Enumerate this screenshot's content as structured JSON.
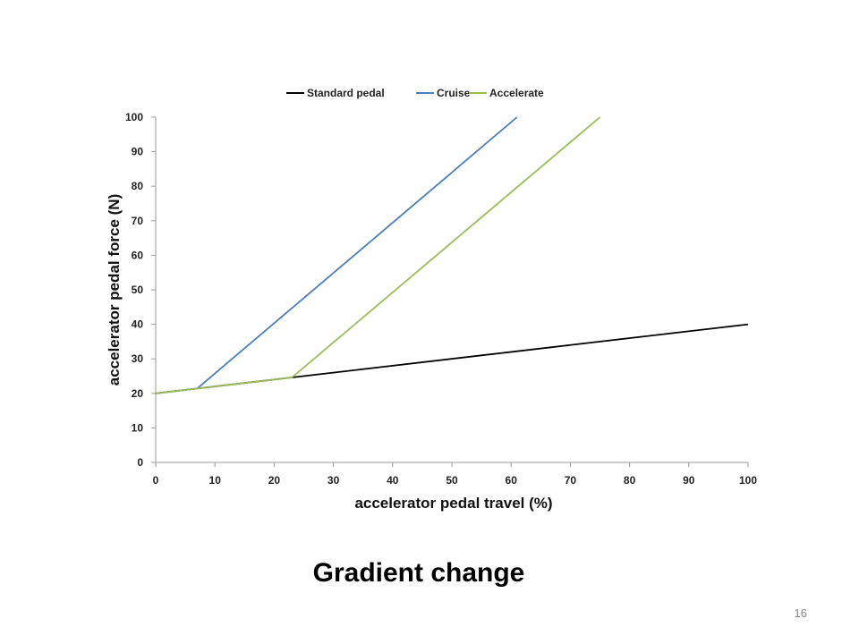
{
  "slide": {
    "title": "Gradient change",
    "page_number": "16"
  },
  "chart_data": {
    "type": "line",
    "xlabel": "accelerator pedal travel (%)",
    "ylabel": "accelerator pedal force (N)",
    "xlim": [
      0,
      100
    ],
    "ylim": [
      0,
      100
    ],
    "x_ticks": [
      "0",
      "10",
      "20",
      "30",
      "40",
      "50",
      "60",
      "70",
      "80",
      "90",
      "100"
    ],
    "y_ticks": [
      "0",
      "10",
      "20",
      "30",
      "40",
      "50",
      "60",
      "70",
      "80",
      "90",
      "100"
    ],
    "grid": false,
    "legend_position": "top",
    "series": [
      {
        "name": "Standard pedal",
        "color": "#000000",
        "x": [
          0,
          7,
          23,
          100
        ],
        "y": [
          20,
          21.4,
          24.6,
          40
        ]
      },
      {
        "name": "Cruise",
        "color": "#4a7ebb",
        "x": [
          0,
          7,
          61
        ],
        "y": [
          20,
          21.4,
          100
        ]
      },
      {
        "name": "Accelerate",
        "color": "#9bbb59",
        "x": [
          0,
          7,
          23,
          75
        ],
        "y": [
          20,
          21.4,
          24.6,
          100
        ]
      }
    ]
  }
}
